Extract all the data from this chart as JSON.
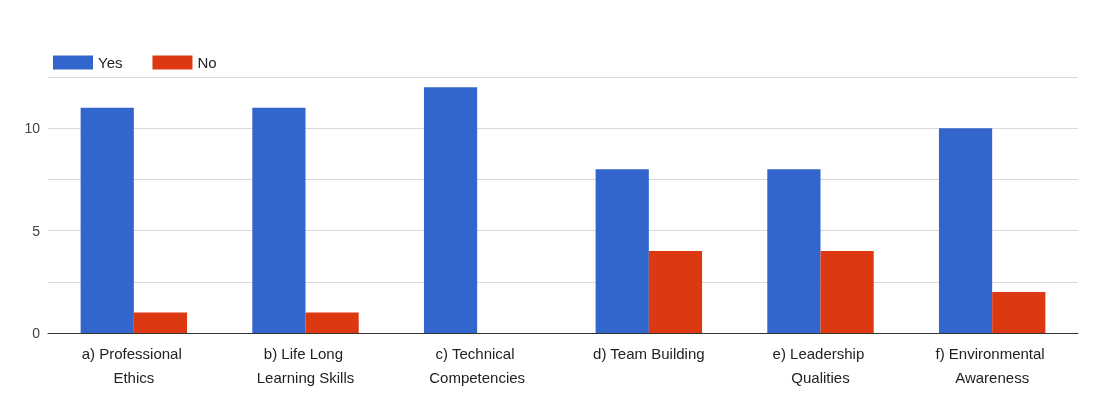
{
  "chart_data": {
    "type": "bar",
    "categories": [
      "a) Professional Ethics",
      "b) Life Long Learning Skills",
      "c) Technical Competencies",
      "d) Team Building",
      "e) Leadership Qualities",
      "f) Environmental Awareness"
    ],
    "series": [
      {
        "name": "Yes",
        "color": "#3366cc",
        "values": [
          11,
          11,
          12,
          8,
          8,
          10
        ]
      },
      {
        "name": "No",
        "color": "#dc3912",
        "values": [
          1,
          1,
          0,
          4,
          4,
          2
        ]
      }
    ],
    "ylim": [
      0,
      12.5
    ],
    "yticks": [
      0,
      {
        "value": 2.5,
        "label": null
      },
      5,
      {
        "value": 7.5,
        "label": null
      },
      10,
      {
        "value": 12.5,
        "label": null
      }
    ],
    "grid": "y",
    "legend": "top left"
  }
}
